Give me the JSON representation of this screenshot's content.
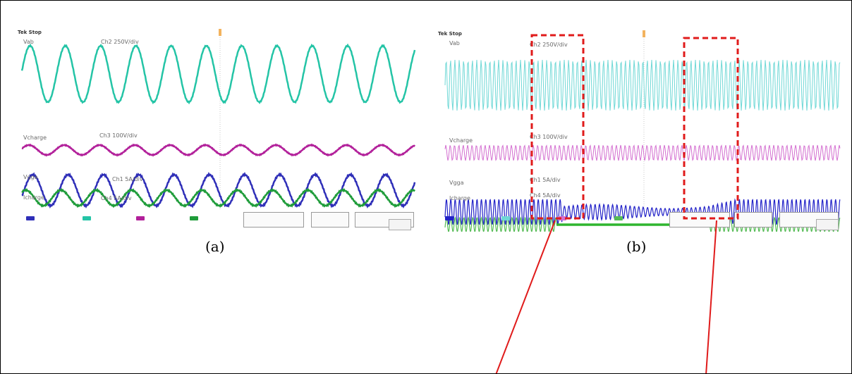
{
  "panels": [
    {
      "id": "a",
      "caption": "(a)",
      "channels": [
        {
          "label": "Vab",
          "scale": "Ch2 250V/div",
          "color": "#24c4a6"
        },
        {
          "label": "Vcharge",
          "scale": "Ch3 100V/div",
          "color": "#b2209a"
        },
        {
          "label": "Vgga",
          "scale": "Ch1 5A/div",
          "color": "#2f2fb8"
        },
        {
          "label": "Icharge",
          "scale": "Ch4 5A/div",
          "color": "#1f9c3a"
        }
      ]
    },
    {
      "id": "b",
      "caption": "(b)",
      "channels": [
        {
          "label": "Vab",
          "scale": "Ch2 250V/div",
          "color": "#6fd8d6"
        },
        {
          "label": "Vcharge",
          "scale": "Ch3 100V/div",
          "color": "#d36ed0"
        },
        {
          "label": "Vgga",
          "scale": "Ch1 5A/div",
          "color": "#2222c8"
        },
        {
          "label": "Icharge",
          "scale": "Ch4 5A/div",
          "color": "#55bb55"
        }
      ]
    }
  ],
  "highlight_color": "#e01b1b",
  "tek_mark": "Tek Stop"
}
